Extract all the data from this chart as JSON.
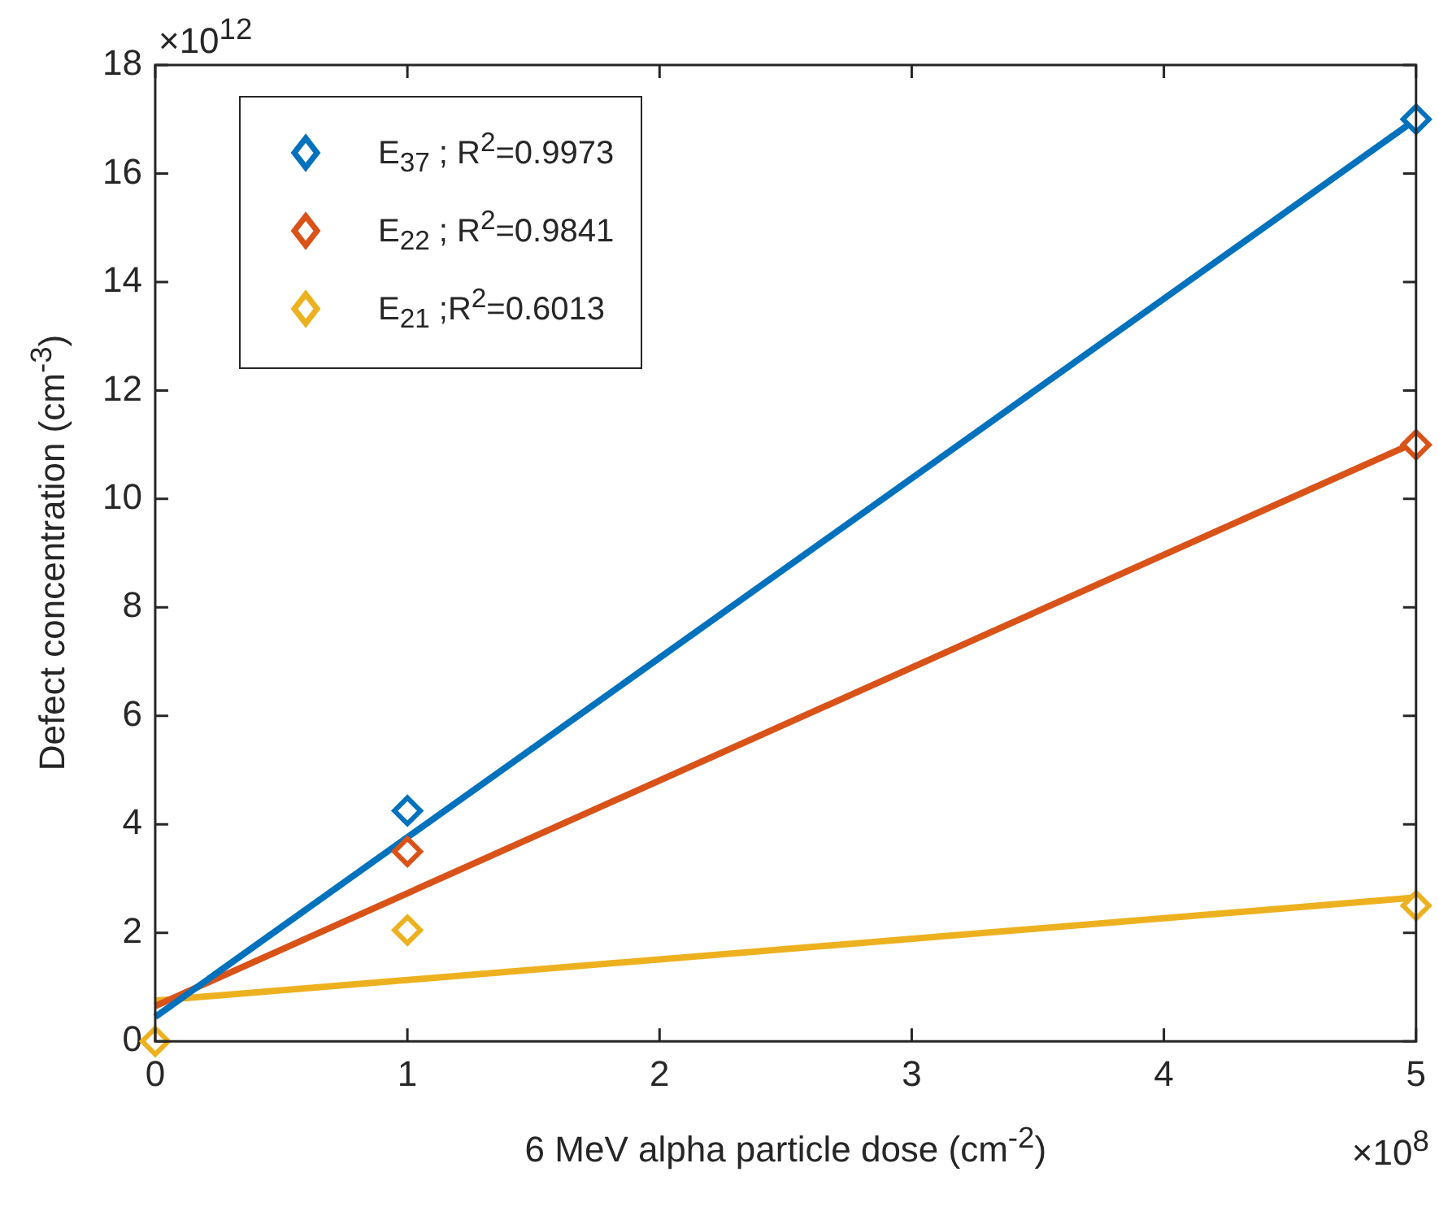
{
  "chart_data": {
    "type": "scatter",
    "xlabel": "6 MeV alpha particle dose (cm$^{-2}$)",
    "ylabel": "Defect concentration (cm$^{-3}$)",
    "annotations": [
      "×10$^{12}$",
      "×10$^{8}$"
    ],
    "xlim": [
      0,
      5
    ],
    "ylim": [
      0,
      18
    ],
    "xticks": [
      0,
      1,
      2,
      3,
      4,
      5
    ],
    "yticks": [
      0,
      2,
      4,
      6,
      8,
      10,
      12,
      14,
      16,
      18
    ],
    "legend": "top left",
    "marker": "diamond",
    "series": [
      {
        "name": "E$_{37}$ ; R$^{2}$=0.9973",
        "color": "#0072bd",
        "x": [
          1,
          5
        ],
        "values": [
          4.25,
          17.0
        ]
      },
      {
        "name": "E$_{22}$ ; R$^{2}$=0.9841",
        "color": "#d95319",
        "x": [
          1,
          5
        ],
        "values": [
          3.5,
          11.0
        ]
      },
      {
        "name": "E$_{21}$ ;R$^{2}$=0.6013",
        "color": "#edb120",
        "x": [
          0,
          1,
          5
        ],
        "values": [
          0,
          2.05,
          2.5
        ]
      },
      {
        "type": "line",
        "marker": "none",
        "color": "#0072bd",
        "x": [
          0,
          5
        ],
        "values": [
          0.45,
          17.0
        ]
      },
      {
        "type": "line",
        "marker": "none",
        "color": "#d95319",
        "x": [
          0,
          5
        ],
        "values": [
          0.65,
          11.05
        ]
      },
      {
        "type": "line",
        "marker": "none",
        "color": "#edb120",
        "x": [
          0,
          5
        ],
        "values": [
          0.75,
          2.65
        ]
      }
    ]
  }
}
